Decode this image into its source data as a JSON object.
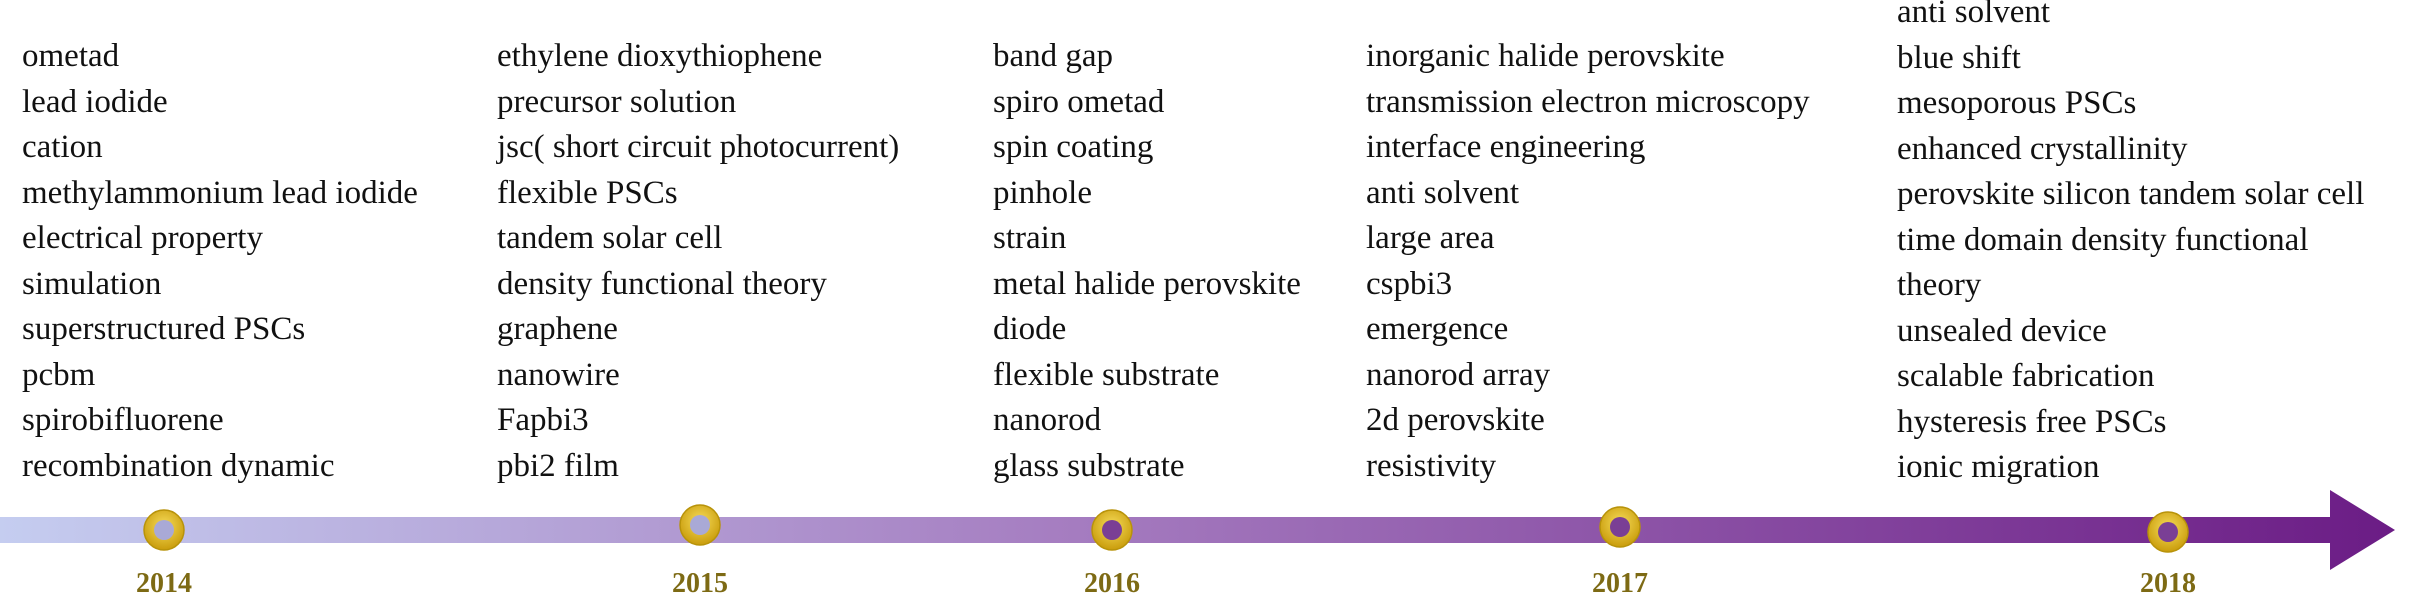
{
  "colors": {
    "arrow_start": "#c5cdf0",
    "arrow_end": "#6b1c85",
    "marker_ring": "#e8bf1c",
    "marker_ring_dark": "#b8930a",
    "year_text": "#7d6a14"
  },
  "timeline": {
    "years": [
      "2014",
      "2015",
      "2016",
      "2017",
      "2018"
    ]
  },
  "columns": [
    {
      "year": "2014",
      "keywords": [
        "ometad",
        "lead iodide",
        "cation",
        "methylammonium lead iodide",
        "electrical property",
        "simulation",
        "superstructured PSCs",
        "pcbm",
        "spirobifluorene",
        "recombination dynamic"
      ]
    },
    {
      "year": "2015",
      "keywords": [
        "ethylene dioxythiophene",
        "precursor solution",
        "jsc( short circuit photocurrent)",
        "flexible PSCs",
        "tandem solar cell",
        "density functional theory",
        "graphene",
        "nanowire",
        "Fapbi3",
        "pbi2 film"
      ]
    },
    {
      "year": "2016",
      "keywords": [
        "band gap",
        "spiro ometad",
        "spin coating",
        "pinhole",
        "strain",
        "metal halide perovskite",
        "diode",
        "flexible substrate",
        "nanorod",
        "glass substrate"
      ]
    },
    {
      "year": "2017",
      "keywords": [
        "inorganic halide perovskite",
        "transmission electron microscopy",
        "interface engineering",
        "anti solvent",
        "large area",
        "cspbi3",
        "emergence",
        "nanorod array",
        "2d perovskite",
        "resistivity"
      ]
    },
    {
      "year": "2018",
      "keywords": [
        "anti solvent",
        "blue shift",
        "mesoporous PSCs",
        "enhanced crystallinity",
        "perovskite silicon tandem solar cell",
        "time domain density functional",
        "theory",
        "unsealed device",
        "scalable fabrication",
        "hysteresis free PSCs",
        "ionic migration"
      ]
    }
  ]
}
